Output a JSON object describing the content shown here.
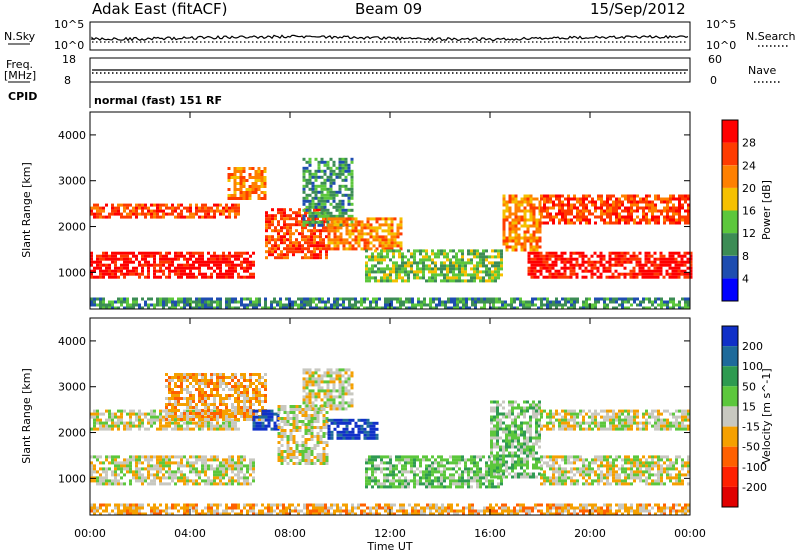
{
  "header": {
    "station": "Adak East (fitACF)",
    "beam": "Beam 09",
    "date": "15/Sep/2012"
  },
  "strips": {
    "nsky_label": "N.Sky",
    "nsky_ticks": [
      "10^5",
      "10^0"
    ],
    "nsearch_label": "N.Search",
    "nsearch_ticks": [
      "10^5",
      "10^0"
    ],
    "freq_label_1": "Freq.",
    "freq_label_2": "[MHz]",
    "freq_ticks": [
      "18",
      "8"
    ],
    "nave_label": "Nave",
    "nave_ticks": [
      "60",
      "0"
    ],
    "cpid_label": "CPID",
    "cpid_value": "normal (fast) 151 RF"
  },
  "chart_data": [
    {
      "type": "heatmap",
      "name": "power",
      "ylabel": "Slant Range [km]",
      "ylim": [
        200,
        4500
      ],
      "yticks": [
        "1000",
        "2000",
        "3000",
        "4000"
      ],
      "colorbar_label": "Power [dB]",
      "colorbar_ticks": [
        "4",
        "8",
        "12",
        "16",
        "20",
        "24",
        "28"
      ],
      "colors": [
        "#0000ff",
        "#1e4db0",
        "#3c8c55",
        "#5cc73c",
        "#f5c000",
        "#ff8000",
        "#ff3b00",
        "#ff0000"
      ],
      "bands": [
        {
          "t0": 0.0,
          "t1": 6.5,
          "r0": 900,
          "r1": 1450,
          "level": 7
        },
        {
          "t0": 0.0,
          "t1": 6.0,
          "r0": 2200,
          "r1": 2500,
          "level": 6
        },
        {
          "t0": 5.5,
          "t1": 7.0,
          "r0": 2600,
          "r1": 3300,
          "level": 5
        },
        {
          "t0": 7.0,
          "t1": 9.5,
          "r0": 1300,
          "r1": 2400,
          "level": 6
        },
        {
          "t0": 8.5,
          "t1": 10.5,
          "r0": 2000,
          "r1": 3500,
          "level": 2
        },
        {
          "t0": 9.5,
          "t1": 12.5,
          "r0": 1500,
          "r1": 2200,
          "level": 5
        },
        {
          "t0": 11.0,
          "t1": 16.5,
          "r0": 800,
          "r1": 1500,
          "level": 3
        },
        {
          "t0": 16.5,
          "t1": 18.0,
          "r0": 1500,
          "r1": 2700,
          "level": 5
        },
        {
          "t0": 18.0,
          "t1": 24.0,
          "r0": 2100,
          "r1": 2700,
          "level": 6
        },
        {
          "t0": 17.5,
          "t1": 24.0,
          "r0": 900,
          "r1": 1450,
          "level": 7
        },
        {
          "t0": 0.0,
          "t1": 24.0,
          "r0": 200,
          "r1": 450,
          "level": 2
        }
      ]
    },
    {
      "type": "heatmap",
      "name": "velocity",
      "ylabel": "Slant Range [km]",
      "ylim": [
        200,
        4500
      ],
      "yticks": [
        "1000",
        "2000",
        "3000",
        "4000"
      ],
      "colorbar_label": "Velocity [m s^-1]",
      "colorbar_ticks": [
        "200",
        "100",
        "50",
        "15",
        "-15",
        "-50",
        "-100",
        "-200"
      ],
      "colors": [
        "#1030c8",
        "#1e6a9a",
        "#2e9a50",
        "#5cc73c",
        "#c8c8c0",
        "#f5a000",
        "#ff6000",
        "#ff2000",
        "#e00000"
      ],
      "bands": [
        {
          "t0": 0.0,
          "t1": 6.5,
          "r0": 900,
          "r1": 1500,
          "level": 4
        },
        {
          "t0": 0.0,
          "t1": 6.0,
          "r0": 2100,
          "r1": 2500,
          "level": 4
        },
        {
          "t0": 3.0,
          "t1": 7.0,
          "r0": 2300,
          "r1": 3300,
          "level": 5
        },
        {
          "t0": 6.5,
          "t1": 7.5,
          "r0": 2100,
          "r1": 2500,
          "level": 0
        },
        {
          "t0": 7.5,
          "t1": 9.5,
          "r0": 1300,
          "r1": 2600,
          "level": 4
        },
        {
          "t0": 8.5,
          "t1": 10.5,
          "r0": 2500,
          "r1": 3400,
          "level": 4
        },
        {
          "t0": 9.5,
          "t1": 11.5,
          "r0": 1900,
          "r1": 2300,
          "level": 0
        },
        {
          "t0": 11.0,
          "t1": 16.5,
          "r0": 800,
          "r1": 1500,
          "level": 3
        },
        {
          "t0": 16.0,
          "t1": 18.0,
          "r0": 1000,
          "r1": 2700,
          "level": 3
        },
        {
          "t0": 18.0,
          "t1": 24.0,
          "r0": 900,
          "r1": 1500,
          "level": 4
        },
        {
          "t0": 18.0,
          "t1": 24.0,
          "r0": 2100,
          "r1": 2500,
          "level": 4
        },
        {
          "t0": 0.0,
          "t1": 24.0,
          "r0": 200,
          "r1": 450,
          "level": 5
        }
      ]
    }
  ],
  "xaxis": {
    "label": "Time UT",
    "ticks": [
      "00:00",
      "04:00",
      "08:00",
      "12:00",
      "16:00",
      "20:00",
      "00:00"
    ]
  }
}
